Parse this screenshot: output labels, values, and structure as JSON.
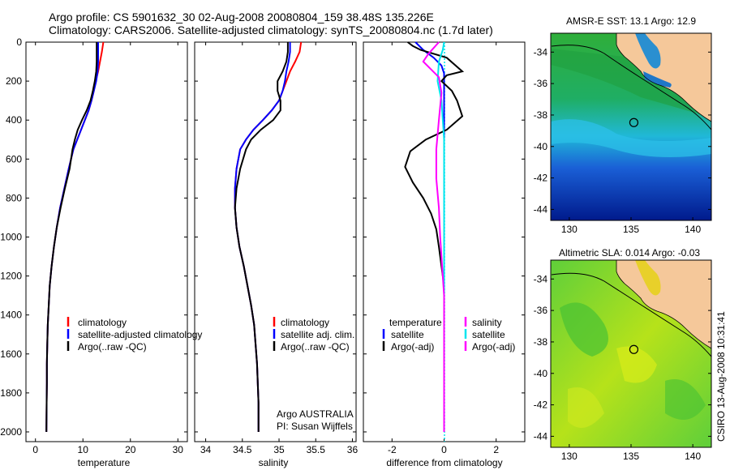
{
  "header": {
    "line1": "Argo profile: CS 5901632_30 02-Aug-2008 20080804_159 38.48S 135.226E",
    "line2": "Climatology: CARS2006. Satellite-adjusted climatology: synTS_20080804.nc (1.7d later)"
  },
  "footer": {
    "ytick_labels": [
      "0",
      "200",
      "400",
      "600",
      "800",
      "1000",
      "1200",
      "1400",
      "1600",
      "1800",
      "2000"
    ],
    "temp_xlabel": "temperature",
    "temp_xticks": [
      "0",
      "10",
      "20",
      "30"
    ],
    "sal_xlabel": "salinity",
    "sal_xticks": [
      "34",
      "34.5",
      "35",
      "35.5",
      "36"
    ],
    "diff_xlabel": "difference from climatology",
    "diff_xticks": [
      "-2",
      "0",
      "2"
    ]
  },
  "legends": {
    "temp": [
      "climatology",
      "satellite-adjusted climatology",
      "Argo(..raw -QC)"
    ],
    "sal": [
      "climatology",
      "satellite adj. clim.",
      "Argo(..raw -QC)"
    ],
    "diff_temp_title": "temperature",
    "diff_temp": [
      "satellite",
      "Argo(-adj)"
    ],
    "diff_sal_title": "salinity",
    "diff_sal": [
      "satellite",
      "Argo(-adj)"
    ]
  },
  "notes": {
    "argo_line1": "Argo AUSTRALIA",
    "argo_line2": "PI: Susan Wijffels",
    "side_text": "CSIRO 13-Aug-2008 10:31:41"
  },
  "maps": {
    "sst_title": "AMSR-E SST: 13.1 Argo: 12.9",
    "sla_title": "Altimetric SLA: 0.014 Argo: -0.03",
    "yticks": [
      "-34",
      "-36",
      "-38",
      "-40",
      "-42",
      "-44"
    ],
    "xticks": [
      "130",
      "135",
      "140"
    ],
    "float_lon": 135.226,
    "float_lat": -38.48,
    "lon_range": [
      128.5,
      141.5
    ],
    "lat_range": [
      -44.7,
      -32.8
    ]
  },
  "colors": {
    "climatology": "#ff0000",
    "satellite_temp": "#0000ff",
    "argo": "#000000",
    "satellite_sal": "#00e5ee",
    "argo_sal_adj": "#ff00ff",
    "land": "#f5c89a"
  },
  "chart_data": [
    {
      "type": "line",
      "name": "temperature",
      "xlim": [
        -2,
        32
      ],
      "ylim": [
        2050,
        0
      ],
      "series": [
        {
          "name": "climatology",
          "x": [
            14.3,
            14.0,
            13.6,
            13.2,
            12.7,
            12.3,
            11.8,
            11.2,
            10.4,
            9.6,
            8.8,
            8.0,
            7.0,
            6.1,
            5.2,
            4.5,
            3.9,
            3.4,
            3.0,
            2.8,
            2.6,
            2.5,
            2.4,
            2.4,
            2.35,
            2.3
          ],
          "y": [
            0,
            50,
            100,
            150,
            200,
            250,
            300,
            350,
            400,
            450,
            500,
            550,
            650,
            750,
            850,
            950,
            1050,
            1150,
            1250,
            1350,
            1450,
            1550,
            1650,
            1750,
            1850,
            2000
          ]
        },
        {
          "name": "satellite-adjusted climatology",
          "x": [
            13.2,
            13.2,
            13.2,
            13.1,
            12.8,
            12.3,
            11.8,
            11.2,
            10.4,
            9.6,
            8.8,
            8.0,
            7.0,
            6.1,
            5.2,
            4.5,
            3.9,
            3.4,
            3.0,
            2.8,
            2.6,
            2.5,
            2.4,
            2.4,
            2.35,
            2.3
          ],
          "y": [
            0,
            50,
            100,
            150,
            200,
            250,
            300,
            350,
            400,
            450,
            500,
            550,
            650,
            750,
            850,
            950,
            1050,
            1150,
            1250,
            1350,
            1450,
            1550,
            1650,
            1750,
            1850,
            2000
          ]
        },
        {
          "name": "Argo(..raw -QC)",
          "x": [
            12.9,
            12.9,
            12.9,
            12.8,
            12.5,
            12.1,
            11.6,
            10.8,
            9.8,
            8.9,
            8.3,
            7.8,
            7.2,
            6.2,
            5.3,
            4.5,
            3.9,
            3.4,
            3.0,
            2.8,
            2.6,
            2.5,
            2.4,
            2.4,
            2.35,
            2.3
          ],
          "y": [
            0,
            50,
            100,
            150,
            200,
            250,
            300,
            350,
            400,
            450,
            500,
            550,
            650,
            750,
            850,
            950,
            1050,
            1150,
            1250,
            1350,
            1450,
            1550,
            1650,
            1750,
            1850,
            2000
          ]
        }
      ]
    },
    {
      "type": "line",
      "name": "salinity",
      "xlim": [
        33.85,
        36.05
      ],
      "ylim": [
        2050,
        0
      ],
      "series": [
        {
          "name": "climatology",
          "x": [
            35.3,
            35.28,
            35.22,
            35.15,
            35.1,
            35.05,
            35.0,
            34.9,
            34.78,
            34.65,
            34.55,
            34.47,
            34.42,
            34.4,
            34.4,
            34.42,
            34.46,
            34.52,
            34.57,
            34.62,
            34.66,
            34.68,
            34.7,
            34.71,
            34.72,
            34.72
          ],
          "y": [
            0,
            50,
            100,
            150,
            200,
            250,
            300,
            350,
            400,
            450,
            500,
            550,
            650,
            750,
            850,
            950,
            1050,
            1150,
            1250,
            1350,
            1450,
            1550,
            1650,
            1750,
            1850,
            2000
          ]
        },
        {
          "name": "satellite adj. clim.",
          "x": [
            35.15,
            35.15,
            35.13,
            35.1,
            35.08,
            35.05,
            35.0,
            34.9,
            34.78,
            34.65,
            34.55,
            34.47,
            34.42,
            34.4,
            34.4,
            34.42,
            34.46,
            34.52,
            34.57,
            34.62,
            34.66,
            34.68,
            34.7,
            34.71,
            34.72,
            34.72
          ],
          "y": [
            0,
            50,
            100,
            150,
            200,
            250,
            300,
            350,
            400,
            450,
            500,
            550,
            650,
            750,
            850,
            950,
            1050,
            1150,
            1250,
            1350,
            1450,
            1550,
            1650,
            1750,
            1850,
            2000
          ]
        },
        {
          "name": "Argo(..raw -QC)",
          "x": [
            35.12,
            35.12,
            35.1,
            35.05,
            34.98,
            34.98,
            35.02,
            35.02,
            34.92,
            34.75,
            34.62,
            34.55,
            34.47,
            34.42,
            34.4,
            34.42,
            34.46,
            34.52,
            34.57,
            34.62,
            34.66,
            34.68,
            34.7,
            34.71,
            34.72,
            34.72
          ],
          "y": [
            0,
            50,
            100,
            150,
            200,
            250,
            300,
            350,
            400,
            450,
            500,
            550,
            650,
            750,
            850,
            950,
            1050,
            1150,
            1250,
            1350,
            1450,
            1550,
            1650,
            1750,
            1850,
            2000
          ]
        }
      ]
    },
    {
      "type": "line",
      "name": "difference from climatology",
      "xlim": [
        -3.1,
        3.1
      ],
      "ylim": [
        2050,
        0
      ],
      "series": [
        {
          "name": "temperature satellite",
          "x": [
            -1.1,
            -0.8,
            -0.4,
            -0.1,
            0.0,
            0.0,
            0.0,
            0.0,
            0.0,
            0.0,
            0.0,
            0.0,
            0.0,
            0.0,
            0.0,
            0.0,
            0.0,
            0.0,
            0.0,
            0.0,
            0.0
          ],
          "y": [
            0,
            40,
            80,
            120,
            160,
            200,
            300,
            400,
            500,
            600,
            700,
            800,
            900,
            1000,
            1100,
            1200,
            1400,
            1600,
            1800,
            1900,
            2000
          ]
        },
        {
          "name": "temperature Argo(-adj)",
          "x": [
            -1.4,
            -1.2,
            -0.9,
            0.1,
            0.7,
            0.1,
            -0.1,
            0.3,
            0.5,
            0.7,
            0.1,
            -0.7,
            -1.3,
            -1.5,
            -1.2,
            -0.8,
            -0.5,
            -0.3,
            -0.2,
            -0.1,
            0.0,
            0.0,
            0.0,
            0.0,
            0.0
          ],
          "y": [
            0,
            20,
            40,
            80,
            150,
            170,
            200,
            250,
            300,
            380,
            450,
            500,
            560,
            640,
            720,
            800,
            880,
            960,
            1050,
            1150,
            1250,
            1400,
            1600,
            1800,
            2000
          ]
        },
        {
          "name": "salinity satellite",
          "x": [
            0.0,
            -0.05,
            -0.2,
            -0.25,
            -0.1,
            -0.05,
            0.0,
            0.0,
            0.0,
            0.0,
            0.0,
            0.0,
            0.0,
            0.0,
            0.0
          ],
          "y": [
            0,
            40,
            100,
            200,
            300,
            400,
            500,
            600,
            800,
            1000,
            1200,
            1400,
            1600,
            1800,
            2000
          ]
        },
        {
          "name": "salinity Argo(-adj)",
          "x": [
            -0.2,
            -0.6,
            -0.8,
            -0.5,
            -0.2,
            -0.1,
            -0.2,
            -0.3,
            -0.3,
            -0.2,
            -0.15,
            -0.1,
            -0.05,
            0.0,
            0.0,
            0.0
          ],
          "y": [
            0,
            60,
            100,
            140,
            180,
            260,
            400,
            550,
            700,
            850,
            1000,
            1100,
            1200,
            1300,
            1600,
            2000
          ]
        }
      ]
    }
  ]
}
